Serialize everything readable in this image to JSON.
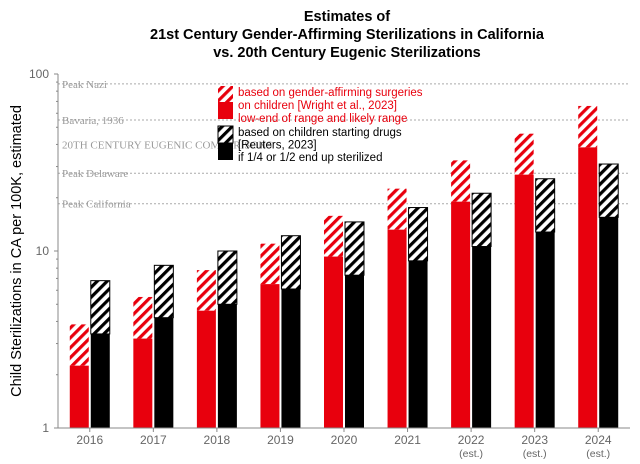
{
  "chart_data": {
    "type": "bar",
    "title_lines": [
      "Estimates of",
      "21st Century Gender-Affirming Sterilizations in California",
      "vs. 20th Century Eugenic Sterilizations"
    ],
    "ylabel": "Child Sterilizations in CA per 100K, estimated",
    "yscale": "log",
    "ylim": [
      1,
      100
    ],
    "yticks": [
      "1",
      "10",
      "100"
    ],
    "categories": [
      "2016",
      "2017",
      "2018",
      "2019",
      "2020",
      "2021",
      "2022",
      "2023",
      "2024"
    ],
    "category_sublabels": [
      "",
      "",
      "",
      "",
      "",
      "",
      "(est.)",
      "(est.)",
      "(est.)"
    ],
    "series": [
      {
        "group": "red",
        "solid_values": [
          2.25,
          3.2,
          4.6,
          6.5,
          9.3,
          13.2,
          19.0,
          27.0,
          38.5
        ],
        "top_values": [
          3.85,
          5.5,
          7.8,
          11.0,
          15.8,
          22.5,
          32.5,
          46.0,
          66.0
        ]
      },
      {
        "group": "black",
        "solid_values": [
          3.4,
          4.2,
          5.0,
          6.1,
          7.3,
          8.8,
          10.6,
          12.8,
          15.5
        ],
        "top_values": [
          6.8,
          8.3,
          10.0,
          12.2,
          14.6,
          17.6,
          21.2,
          25.6,
          31.0
        ]
      }
    ],
    "reference_lines": [
      {
        "label": "Peak Nazi",
        "value": 88
      },
      {
        "label": "Bavaria, 1936",
        "value": 55
      },
      {
        "label": "Peak Delaware",
        "value": 27.5
      },
      {
        "label": "Peak California",
        "value": 18.5
      }
    ],
    "section_label": {
      "text": "20TH CENTURY EUGENIC COMPARISONS",
      "value": 40
    },
    "legend": {
      "red": {
        "lines": [
          "based on gender-affirming surgeries",
          "on children [Wright et al., 2023]",
          "low-end of range and likely range"
        ]
      },
      "black": {
        "lines": [
          "based on children starting drugs",
          "[Reuters, 2023]",
          "if 1/4 or 1/2 end up sterilized"
        ]
      }
    },
    "colors": {
      "red": "#e8000d",
      "black": "#000000",
      "reference": "#aaaaaa",
      "axis": "#888888"
    },
    "grid": false,
    "legend_position": "top-center"
  }
}
